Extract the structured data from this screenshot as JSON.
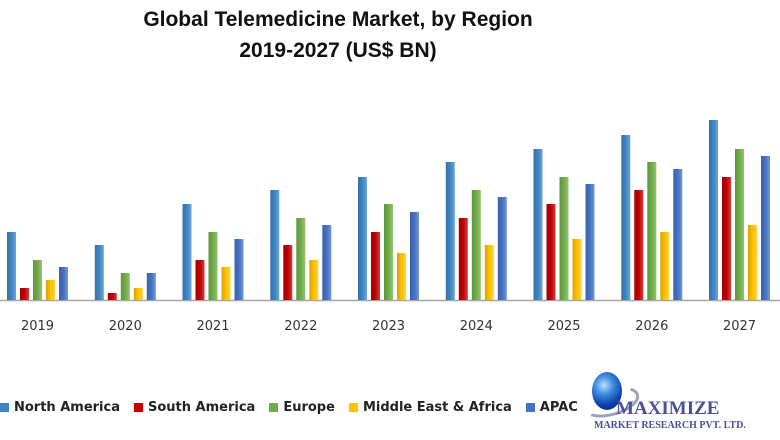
{
  "chart_data": {
    "type": "bar",
    "title": "Global Telemedicine Market, by Region",
    "subtitle": "2019-2027 (US$ BN)",
    "xlabel": "",
    "ylabel": "",
    "y_axis_visible": false,
    "value_note": "no y-axis scale shown; values are relative estimates",
    "ylim": [
      0,
      20
    ],
    "grid": false,
    "legend_position": "bottom",
    "categories": [
      "2019",
      "2020",
      "2021",
      "2022",
      "2023",
      "2024",
      "2025",
      "2026",
      "2027"
    ],
    "series": [
      {
        "name": "North America",
        "color": "#3d85c6",
        "values": [
          6.8,
          5.5,
          9.6,
          11.0,
          12.3,
          13.8,
          15.1,
          16.5,
          18.0
        ]
      },
      {
        "name": "South America",
        "color": "#c00000",
        "values": [
          1.2,
          0.7,
          4.0,
          5.5,
          6.8,
          8.2,
          9.6,
          11.0,
          12.3
        ]
      },
      {
        "name": "Europe",
        "color": "#70ad47",
        "values": [
          4.0,
          2.7,
          6.8,
          8.2,
          9.6,
          11.0,
          12.3,
          13.8,
          15.1
        ]
      },
      {
        "name": "Middle East & Africa",
        "color": "#ffc000",
        "values": [
          2.0,
          1.2,
          3.3,
          4.0,
          4.7,
          5.5,
          6.1,
          6.8,
          7.5
        ]
      },
      {
        "name": "APAC",
        "color": "#4472c4",
        "values": [
          3.3,
          2.7,
          6.1,
          7.5,
          8.8,
          10.3,
          11.6,
          13.1,
          14.4
        ]
      }
    ]
  },
  "logo": {
    "name": "MAXIMIZE",
    "subtitle": "MARKET RESEARCH PVT. LTD."
  }
}
